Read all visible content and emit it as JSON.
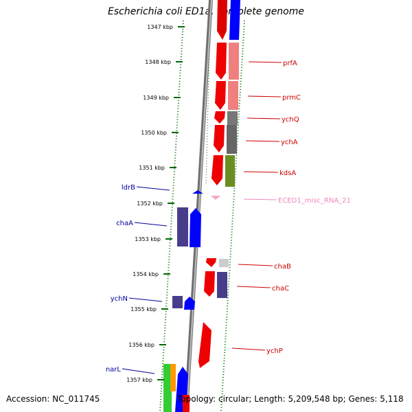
{
  "title": "Escherichia coli ED1a, complete genome",
  "footer": {
    "accession": "Accession: NC_011745",
    "summary": "Topology: circular; Length: 5,209,548 bp; Genes: 5,118"
  },
  "colors": {
    "ruler_tick": "#006600",
    "left_label": "#00009a",
    "right_label": "#cc0000",
    "rna_label": "#ee88bb",
    "backbone": "#8a8a8a"
  },
  "ruler": [
    {
      "label": "1347 kbp"
    },
    {
      "label": "1348 kbp"
    },
    {
      "label": "1349 kbp"
    },
    {
      "label": "1350 kbp"
    },
    {
      "label": "1351 kbp"
    },
    {
      "label": "1352 kbp"
    },
    {
      "label": "1353 kbp"
    },
    {
      "label": "1354 kbp"
    },
    {
      "label": "1355 kbp"
    },
    {
      "label": "1356 kbp"
    },
    {
      "label": "1357 kbp"
    }
  ],
  "left_labels": [
    {
      "name": "ldrB"
    },
    {
      "name": "chaA"
    },
    {
      "name": "ychN"
    },
    {
      "name": "narL"
    }
  ],
  "right_labels": [
    {
      "name": "prfA"
    },
    {
      "name": "prmC"
    },
    {
      "name": "ychQ"
    },
    {
      "name": "ychA"
    },
    {
      "name": "kdsA"
    },
    {
      "name": "ECED1_misc_RNA_21",
      "kind": "rna"
    },
    {
      "name": "chaB"
    },
    {
      "name": "chaC"
    },
    {
      "name": "ychP"
    }
  ]
}
